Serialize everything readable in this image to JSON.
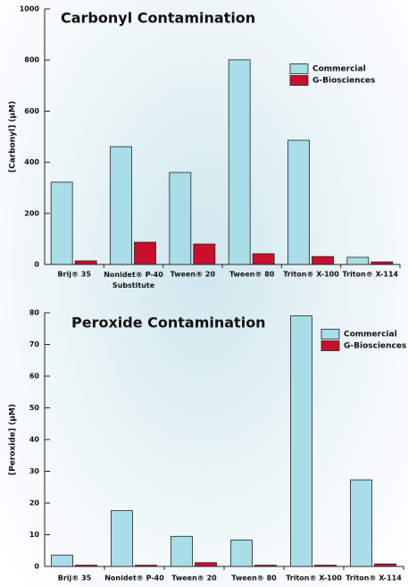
{
  "chart_data": [
    {
      "type": "bar",
      "title": "Carbonyl Contamination",
      "y_label": "[Carbonyl] (µM)",
      "categories": [
        "Brij® 35",
        "Nonidet® P-40\nSubstitute",
        "Tween® 20",
        "Tween® 80",
        "Triton® X-100",
        "Triton® X-114"
      ],
      "series": [
        {
          "name": "Commercial",
          "color": "#a9dde7",
          "values": [
            322,
            461,
            360,
            801,
            486,
            28
          ]
        },
        {
          "name": "G-Biosciences",
          "color": "#c8102e",
          "values": [
            14,
            87,
            80,
            42,
            31,
            10
          ]
        }
      ],
      "ylim": [
        0,
        1000
      ],
      "yticks": [
        0,
        200,
        400,
        600,
        800,
        1000
      ],
      "legend": "upper right"
    },
    {
      "type": "bar",
      "title": "Peroxide Contamination",
      "y_label": "[Peroxide] (µM)",
      "categories": [
        "Brij® 35",
        "Nonidet® P-40",
        "Tween® 20",
        "Tween® 80",
        "Triton® X-100",
        "Triton® X-114"
      ],
      "series": [
        {
          "name": "Commercial",
          "color": "#a9dde7",
          "values": [
            3.6,
            17.6,
            9.5,
            8.3,
            79,
            27.3
          ]
        },
        {
          "name": "G-Biosciences",
          "color": "#c8102e",
          "values": [
            0.4,
            0.4,
            1.2,
            0.4,
            0.4,
            0.8
          ]
        }
      ],
      "ylim": [
        0,
        80
      ],
      "yticks": [
        0,
        10,
        20,
        30,
        40,
        50,
        60,
        70,
        80
      ],
      "legend": "upper right"
    }
  ]
}
